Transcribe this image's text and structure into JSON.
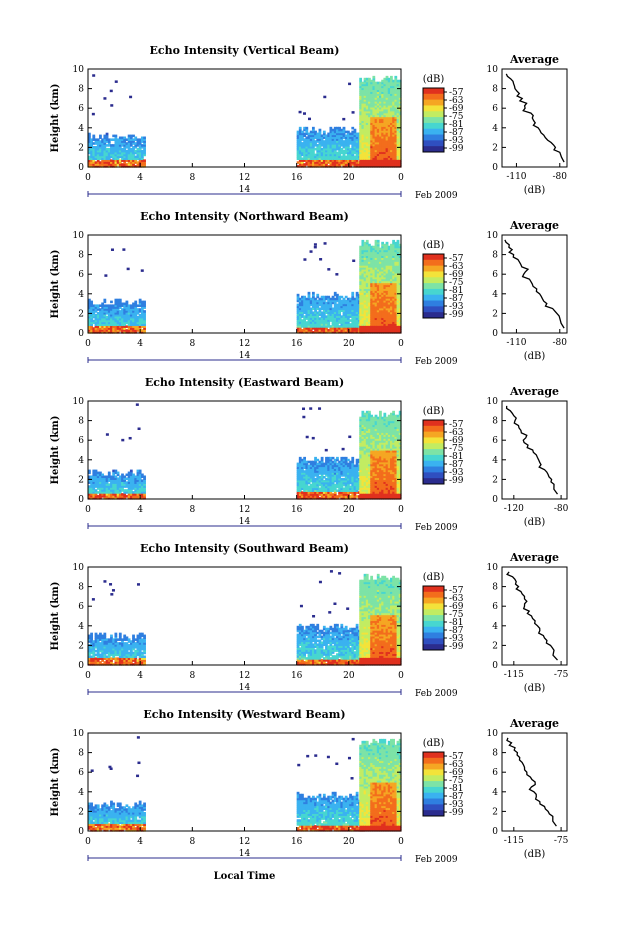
{
  "figure": {
    "xlabel": "Local Time",
    "date_label": "14",
    "month_label": "Feb 2009",
    "colorbar_label": "(dB)",
    "colorbar_ticks": [
      "-57",
      "-63",
      "-69",
      "-75",
      "-81",
      "-87",
      "-93",
      "-99"
    ],
    "colors": {
      "sequence": [
        "#2b2c8e",
        "#2f4fc0",
        "#2f7fe0",
        "#3ab2f0",
        "#47d6d0",
        "#7de3a6",
        "#c2ec62",
        "#f3e33a",
        "#f5a623",
        "#f36d1c",
        "#e0311e"
      ]
    }
  },
  "chart_data": [
    {
      "type": "heatmap",
      "title": "Echo Intensity (Vertical Beam)",
      "xlabel": "",
      "ylabel": "Height (km)",
      "xticks": [
        "0",
        "4",
        "8",
        "12",
        "16",
        "20",
        "0"
      ],
      "x_range": [
        0,
        24
      ],
      "y_range": [
        0,
        10
      ],
      "yticks": [
        "0",
        "2",
        "4",
        "6",
        "8",
        "10"
      ],
      "echo_regions": [
        {
          "t0": 0,
          "t1": 4.4,
          "h0": 0,
          "h1": 3.5,
          "level": 0.18
        },
        {
          "t0": 16,
          "t1": 21.2,
          "h0": 0,
          "h1": 4.1,
          "level": 0.2
        },
        {
          "t0": 20.8,
          "t1": 24,
          "h0": 0,
          "h1": 9.3,
          "level": 0.45
        }
      ],
      "average": {
        "title": "Average",
        "xlabel": "(dB)",
        "xticks": [
          "-110",
          "-80"
        ],
        "x": [
          -117,
          -114,
          -112,
          -111,
          -108,
          -106,
          -103,
          -104,
          -100,
          -99,
          -97,
          -95,
          -93,
          -90,
          -86,
          -83,
          -80,
          -77
        ],
        "heights": [
          9.5,
          9.0,
          8.5,
          8.0,
          7.5,
          7.0,
          6.5,
          6.0,
          5.5,
          5.0,
          4.5,
          4.0,
          3.5,
          3.0,
          2.5,
          2.0,
          1.5,
          0.5
        ],
        "x_range": [
          -120,
          -75
        ],
        "y_range": [
          0,
          10
        ]
      }
    },
    {
      "type": "heatmap",
      "title": "Echo Intensity (Northward Beam)",
      "xlabel": "",
      "ylabel": "Height (km)",
      "xticks": [
        "0",
        "4",
        "8",
        "12",
        "16",
        "20",
        "0"
      ],
      "x_range": [
        0,
        24
      ],
      "y_range": [
        0,
        10
      ],
      "yticks": [
        "0",
        "2",
        "4",
        "6",
        "8",
        "10"
      ],
      "echo_regions": [
        {
          "t0": 0,
          "t1": 4.4,
          "h0": 0,
          "h1": 3.5,
          "level": 0.18
        },
        {
          "t0": 16,
          "t1": 21.2,
          "h0": 0,
          "h1": 4.2,
          "level": 0.2
        },
        {
          "t0": 20.8,
          "t1": 24,
          "h0": 0,
          "h1": 9.5,
          "level": 0.45
        }
      ],
      "average": {
        "title": "Average",
        "xlabel": "(dB)",
        "xticks": [
          "-110",
          "-80"
        ],
        "x": [
          -118,
          -115,
          -113,
          -112,
          -109,
          -107,
          -102,
          -105,
          -101,
          -99,
          -96,
          -94,
          -92,
          -89,
          -85,
          -82,
          -80,
          -77
        ],
        "heights": [
          9.5,
          9.0,
          8.5,
          8.0,
          7.5,
          7.0,
          6.5,
          6.0,
          5.5,
          5.0,
          4.5,
          4.0,
          3.5,
          3.0,
          2.5,
          2.0,
          1.5,
          0.5
        ],
        "x_range": [
          -120,
          -75
        ],
        "y_range": [
          0,
          10
        ]
      }
    },
    {
      "type": "heatmap",
      "title": "Echo Intensity (Eastward Beam)",
      "xlabel": "",
      "ylabel": "Height (km)",
      "xticks": [
        "0",
        "4",
        "8",
        "12",
        "16",
        "20",
        "0"
      ],
      "x_range": [
        0,
        24
      ],
      "y_range": [
        0,
        10
      ],
      "yticks": [
        "0",
        "2",
        "4",
        "6",
        "8",
        "10"
      ],
      "echo_regions": [
        {
          "t0": 0,
          "t1": 4.4,
          "h0": 0,
          "h1": 3.0,
          "level": 0.18
        },
        {
          "t0": 16,
          "t1": 21.2,
          "h0": 0,
          "h1": 4.3,
          "level": 0.2
        },
        {
          "t0": 20.8,
          "t1": 24,
          "h0": 0,
          "h1": 9.0,
          "level": 0.45
        }
      ],
      "average": {
        "title": "Average",
        "xlabel": "(dB)",
        "xticks": [
          "-120",
          "-80"
        ],
        "x": [
          -126,
          -123,
          -120,
          -119,
          -116,
          -114,
          -109,
          -112,
          -108,
          -104,
          -101,
          -99,
          -97,
          -94,
          -91,
          -88,
          -86,
          -83
        ],
        "heights": [
          9.5,
          9.0,
          8.5,
          8.0,
          7.5,
          7.0,
          6.5,
          6.0,
          5.5,
          5.0,
          4.5,
          4.0,
          3.5,
          3.0,
          2.5,
          2.0,
          1.5,
          0.5
        ],
        "x_range": [
          -130,
          -75
        ],
        "y_range": [
          0,
          10
        ]
      }
    },
    {
      "type": "heatmap",
      "title": "Echo Intensity (Southward Beam)",
      "xlabel": "",
      "ylabel": "Height (km)",
      "xticks": [
        "0",
        "4",
        "8",
        "12",
        "16",
        "20",
        "0"
      ],
      "x_range": [
        0,
        24
      ],
      "y_range": [
        0,
        10
      ],
      "yticks": [
        "0",
        "2",
        "4",
        "6",
        "8",
        "10"
      ],
      "echo_regions": [
        {
          "t0": 0,
          "t1": 4.4,
          "h0": 0,
          "h1": 3.3,
          "level": 0.18
        },
        {
          "t0": 16,
          "t1": 21.2,
          "h0": 0,
          "h1": 4.2,
          "level": 0.2
        },
        {
          "t0": 20.8,
          "t1": 24,
          "h0": 0,
          "h1": 9.3,
          "level": 0.45
        }
      ],
      "average": {
        "title": "Average",
        "xlabel": "(dB)",
        "xticks": [
          "-115",
          "-75"
        ],
        "x": [
          -119,
          -116,
          -113,
          -111,
          -109,
          -106,
          -104,
          -106,
          -102,
          -100,
          -97,
          -95,
          -93,
          -90,
          -87,
          -84,
          -81,
          -78
        ],
        "heights": [
          9.5,
          9.0,
          8.5,
          8.0,
          7.5,
          7.0,
          6.5,
          6.0,
          5.5,
          5.0,
          4.5,
          4.0,
          3.5,
          3.0,
          2.5,
          2.0,
          1.5,
          0.5
        ],
        "x_range": [
          -125,
          -70
        ],
        "y_range": [
          0,
          10
        ]
      }
    },
    {
      "type": "heatmap",
      "title": "Echo Intensity (Westward Beam)",
      "xlabel": "",
      "ylabel": "Height (km)",
      "xticks": [
        "0",
        "4",
        "8",
        "12",
        "16",
        "20",
        "0"
      ],
      "x_range": [
        0,
        24
      ],
      "y_range": [
        0,
        10
      ],
      "yticks": [
        "0",
        "2",
        "4",
        "6",
        "8",
        "10"
      ],
      "echo_regions": [
        {
          "t0": 0,
          "t1": 4.4,
          "h0": 0,
          "h1": 3.1,
          "level": 0.18
        },
        {
          "t0": 16,
          "t1": 21.2,
          "h0": 0,
          "h1": 4.0,
          "level": 0.2
        },
        {
          "t0": 20.8,
          "t1": 24,
          "h0": 0,
          "h1": 9.4,
          "level": 0.45
        }
      ],
      "average": {
        "title": "Average",
        "xlabel": "(dB)",
        "xticks": [
          "-115",
          "-75"
        ],
        "x": [
          -120,
          -117,
          -114,
          -112,
          -110,
          -108,
          -106,
          -104,
          -101,
          -97,
          -100,
          -98,
          -96,
          -93,
          -89,
          -86,
          -82,
          -79
        ],
        "heights": [
          9.5,
          9.0,
          8.5,
          8.0,
          7.5,
          7.0,
          6.5,
          6.0,
          5.5,
          5.0,
          4.5,
          4.0,
          3.5,
          3.0,
          2.5,
          2.0,
          1.5,
          0.5
        ],
        "x_range": [
          -125,
          -70
        ],
        "y_range": [
          0,
          10
        ]
      }
    }
  ]
}
